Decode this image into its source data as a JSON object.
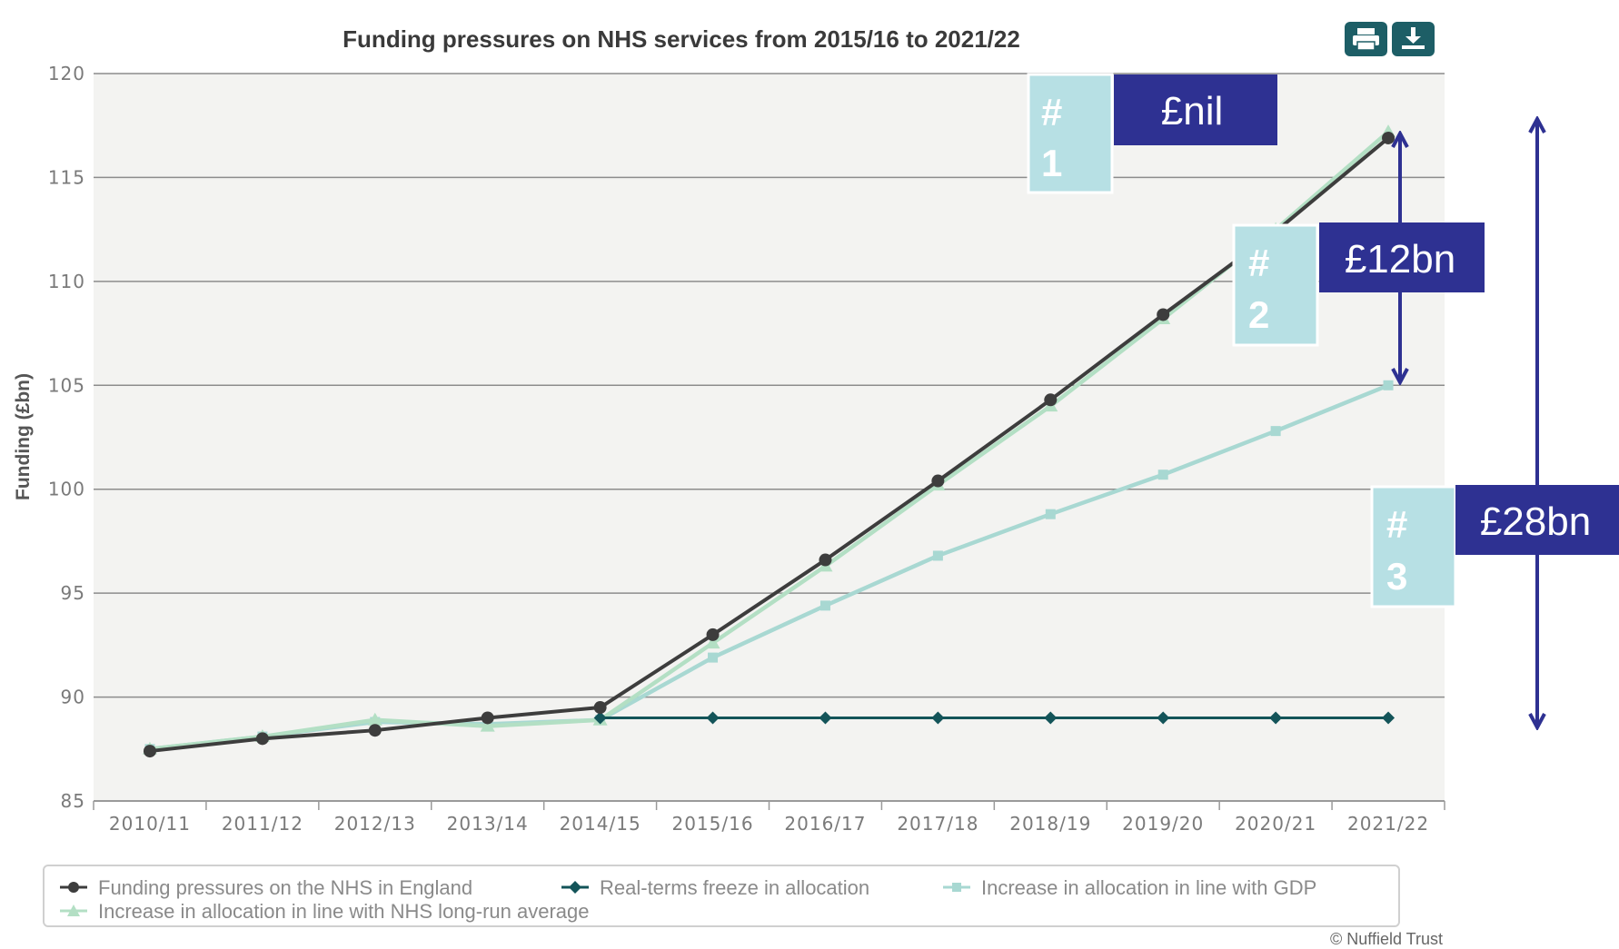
{
  "colors": {
    "plot_bg": "#f3f3f1",
    "grid": "#8c8c8c",
    "pressures": "#3d3d3d",
    "freeze": "#135459",
    "gdp": "#a8d8d2",
    "longrun": "#b3dfc4",
    "callout_box": "#2e3192",
    "hash_box": "#b7e0e4",
    "toolbar_btn": "#1d5e66"
  },
  "toolbar": {
    "print_icon": "printer-icon",
    "download_icon": "download-icon"
  },
  "credit": "© Nuffield Trust",
  "annotations": [
    {
      "hash": "#",
      "num": "1",
      "amount": "£nil"
    },
    {
      "hash": "#",
      "num": "2",
      "amount": "£12bn"
    },
    {
      "hash": "#",
      "num": "3",
      "amount": "£28bn"
    }
  ],
  "chart_data": {
    "type": "line",
    "title": "Funding pressures on NHS services from 2015/16 to 2021/22",
    "ylabel": "Funding (£bn)",
    "xlabel": "",
    "ylim": [
      85,
      120
    ],
    "yticks": [
      85,
      90,
      95,
      100,
      105,
      110,
      115,
      120
    ],
    "grid": true,
    "legend_position": "bottom",
    "categories": [
      "2010/11",
      "2011/12",
      "2012/13",
      "2013/14",
      "2014/15",
      "2015/16",
      "2016/17",
      "2017/18",
      "2018/19",
      "2019/20",
      "2020/21",
      "2021/22"
    ],
    "series": [
      {
        "name": "Funding pressures on the NHS in England",
        "marker": "circle",
        "color": "#3d3d3d",
        "values": [
          87.4,
          88.0,
          88.4,
          89.0,
          89.5,
          93.0,
          96.6,
          100.4,
          104.3,
          108.4,
          112.4,
          116.9
        ]
      },
      {
        "name": "Real-terms freeze in allocation",
        "marker": "diamond",
        "color": "#135459",
        "values": [
          null,
          null,
          null,
          null,
          89.0,
          89.0,
          89.0,
          89.0,
          89.0,
          89.0,
          89.0,
          89.0
        ]
      },
      {
        "name": "Increase in allocation in line with GDP",
        "marker": "square",
        "color": "#a8d8d2",
        "values": [
          87.5,
          88.1,
          88.8,
          88.7,
          88.9,
          91.9,
          94.4,
          96.8,
          98.8,
          100.7,
          102.8,
          105.0
        ]
      },
      {
        "name": "Increase in allocation in line with NHS long-run average",
        "marker": "triangle",
        "color": "#b3dfc4",
        "values": [
          87.5,
          88.1,
          88.9,
          88.6,
          88.9,
          92.6,
          96.3,
          100.2,
          104.0,
          108.2,
          112.5,
          117.2
        ]
      }
    ]
  }
}
